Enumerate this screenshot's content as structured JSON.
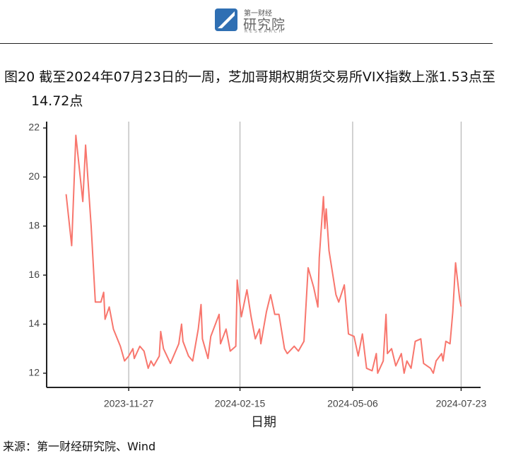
{
  "header": {
    "brand_top": "第一财经",
    "brand": "研究院",
    "brand_sub": "RESEARCH"
  },
  "chart_data": {
    "type": "line",
    "title": "图20  截至2024年07月23日的一周，芝加哥期权期货交易所VIX指数上涨1.53点至14.72点",
    "x_label": "日期",
    "source": "来源：第一财经研究院、Wind",
    "color": "#f8766d",
    "grid": "x",
    "xlim": [
      "2023-09-29",
      "2024-08-06"
    ],
    "xticks": [
      "2023-11-27",
      "2024-02-15",
      "2024-05-06",
      "2024-07-23"
    ],
    "ylim": [
      11.42,
      22.26
    ],
    "yticks": [
      12,
      14,
      16,
      18,
      20,
      22
    ],
    "x": [
      "2023-10-13",
      "2023-10-17",
      "2023-10-20",
      "2023-10-25",
      "2023-10-27",
      "2023-10-31",
      "2023-11-03",
      "2023-11-07",
      "2023-11-09",
      "2023-11-10",
      "2023-11-13",
      "2023-11-16",
      "2023-11-21",
      "2023-11-24",
      "2023-11-27",
      "2023-11-30",
      "2023-12-01",
      "2023-12-05",
      "2023-12-08",
      "2023-12-11",
      "2023-12-13",
      "2023-12-15",
      "2023-12-19",
      "2023-12-20",
      "2023-12-22",
      "2023-12-27",
      "2024-01-02",
      "2024-01-04",
      "2024-01-05",
      "2024-01-09",
      "2024-01-12",
      "2024-01-16",
      "2024-01-18",
      "2024-01-19",
      "2024-01-23",
      "2024-01-25",
      "2024-01-31",
      "2024-02-01",
      "2024-02-05",
      "2024-02-08",
      "2024-02-12",
      "2024-02-13",
      "2024-02-16",
      "2024-02-20",
      "2024-02-23",
      "2024-02-26",
      "2024-02-29",
      "2024-03-01",
      "2024-03-05",
      "2024-03-08",
      "2024-03-11",
      "2024-03-14",
      "2024-03-18",
      "2024-03-20",
      "2024-03-25",
      "2024-03-28",
      "2024-04-01",
      "2024-04-04",
      "2024-04-08",
      "2024-04-11",
      "2024-04-12",
      "2024-04-15",
      "2024-04-16",
      "2024-04-17",
      "2024-04-19",
      "2024-04-24",
      "2024-04-26",
      "2024-04-30",
      "2024-05-03",
      "2024-05-07",
      "2024-05-10",
      "2024-05-13",
      "2024-05-16",
      "2024-05-20",
      "2024-05-23",
      "2024-05-24",
      "2024-05-28",
      "2024-05-30",
      "2024-05-31",
      "2024-06-03",
      "2024-06-06",
      "2024-06-10",
      "2024-06-12",
      "2024-06-14",
      "2024-06-17",
      "2024-06-20",
      "2024-06-24",
      "2024-06-26",
      "2024-07-01",
      "2024-07-03",
      "2024-07-05",
      "2024-07-09",
      "2024-07-10",
      "2024-07-12",
      "2024-07-15",
      "2024-07-17",
      "2024-07-19",
      "2024-07-22",
      "2024-07-23"
    ],
    "values": [
      19.3,
      17.2,
      21.7,
      19.0,
      21.3,
      18.0,
      14.9,
      14.9,
      15.3,
      14.2,
      14.7,
      13.8,
      13.1,
      12.5,
      12.7,
      13.0,
      12.6,
      13.1,
      12.9,
      12.2,
      12.5,
      12.3,
      12.7,
      13.7,
      13.0,
      12.4,
      13.2,
      14.0,
      13.3,
      12.7,
      12.5,
      13.8,
      14.8,
      13.4,
      12.6,
      13.5,
      14.4,
      13.2,
      13.8,
      12.9,
      13.1,
      15.8,
      14.3,
      15.4,
      14.3,
      13.4,
      13.8,
      13.2,
      14.5,
      15.2,
      14.4,
      14.4,
      13.0,
      12.8,
      13.1,
      12.9,
      13.3,
      16.3,
      15.5,
      14.7,
      16.7,
      19.2,
      17.9,
      18.7,
      17.0,
      15.2,
      14.9,
      15.6,
      13.6,
      13.5,
      12.7,
      13.6,
      12.2,
      12.1,
      12.8,
      12.0,
      12.5,
      14.4,
      12.8,
      13.0,
      12.3,
      12.8,
      12.0,
      12.5,
      12.2,
      13.3,
      13.4,
      12.4,
      12.2,
      12.0,
      12.5,
      12.8,
      12.5,
      13.3,
      13.2,
      14.5,
      16.5,
      15.0,
      14.72
    ]
  }
}
